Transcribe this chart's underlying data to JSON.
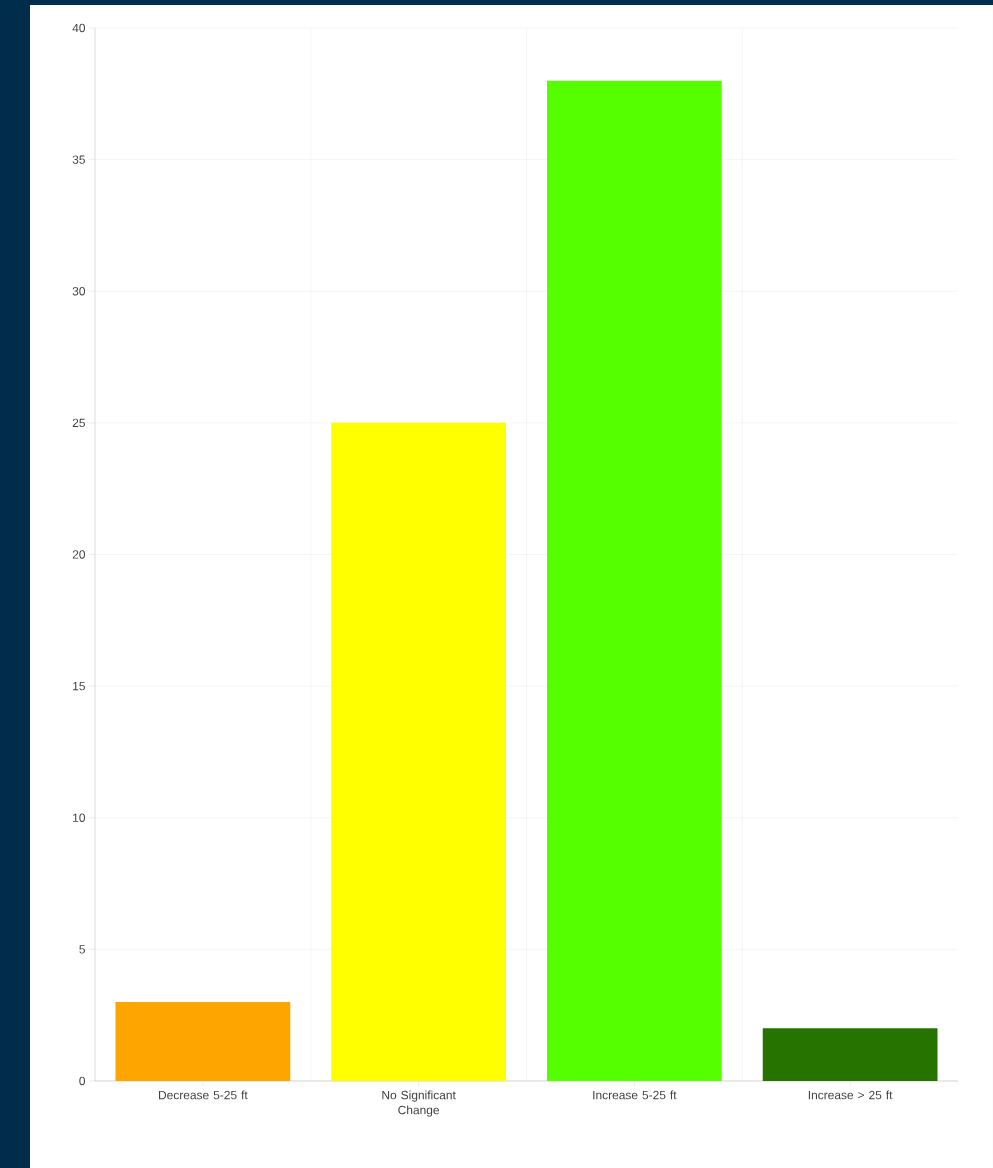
{
  "chart_data": {
    "type": "bar",
    "categories": [
      "Decrease 5-25 ft",
      "No Significant Change",
      "Increase 5-25 ft",
      "Increase > 25 ft"
    ],
    "values": [
      3,
      25,
      38,
      2
    ],
    "colors": [
      "#ffa500",
      "#ffff00",
      "#55ff00",
      "#267300"
    ],
    "ylim": [
      0,
      40
    ],
    "yticks": [
      0,
      5,
      10,
      15,
      20,
      25,
      30,
      35,
      40
    ],
    "grid": true
  }
}
